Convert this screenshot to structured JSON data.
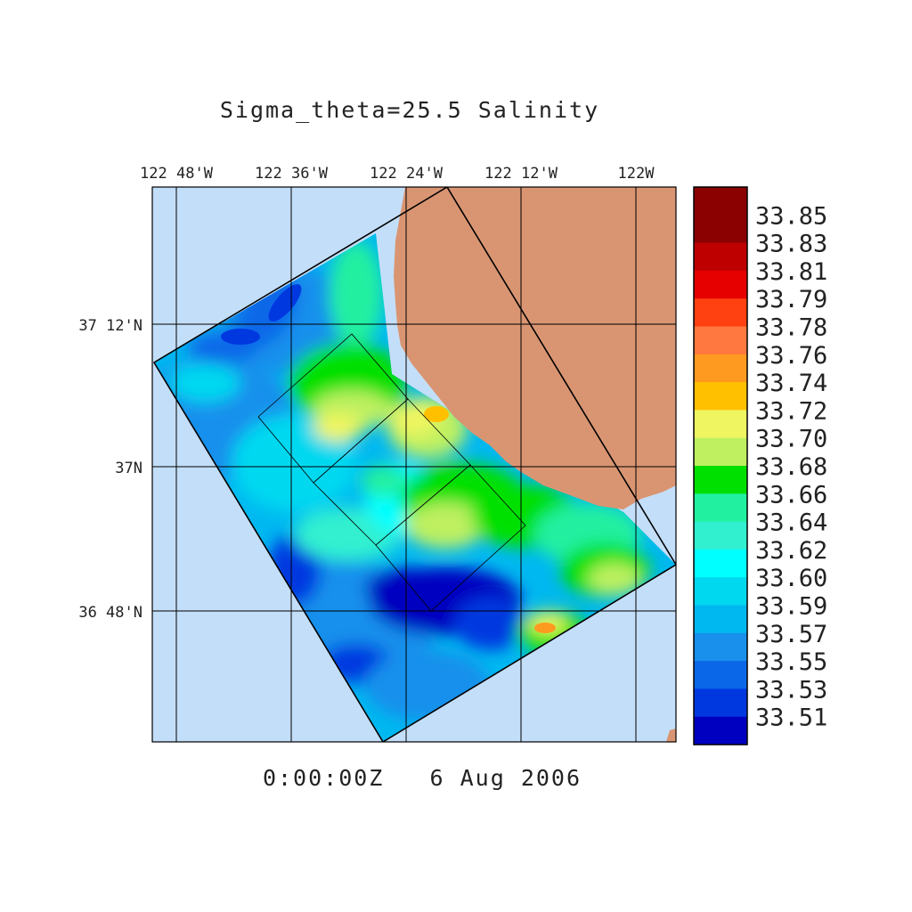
{
  "title": "Sigma_theta=25.5 Salinity",
  "timestamp": "0:00:00Z   6 Aug 2006",
  "map": {
    "lon_ticks": [
      "122 48'W",
      "122 36'W",
      "122 24'W",
      "122 12'W",
      "122W"
    ],
    "lat_ticks": [
      "37 12'N",
      "37N",
      "36 48'N"
    ],
    "colors": {
      "ocean_background": "#c3def8",
      "land": "#d99572",
      "grid": "#000000"
    }
  },
  "colorbar": {
    "labels": [
      "33.85",
      "33.83",
      "33.81",
      "33.79",
      "33.78",
      "33.76",
      "33.74",
      "33.72",
      "33.70",
      "33.68",
      "33.66",
      "33.64",
      "33.62",
      "33.60",
      "33.59",
      "33.57",
      "33.55",
      "33.53",
      "33.51"
    ],
    "colors": [
      "#8b0000",
      "#bf0000",
      "#e60000",
      "#ff4010",
      "#ff7840",
      "#ff9a20",
      "#ffc000",
      "#eef560",
      "#bef060",
      "#00e000",
      "#20f0a0",
      "#30f0d0",
      "#00ffff",
      "#00d8f0",
      "#00b8f0",
      "#1890ec",
      "#0a68e8",
      "#0038e0",
      "#0000c0"
    ]
  }
}
